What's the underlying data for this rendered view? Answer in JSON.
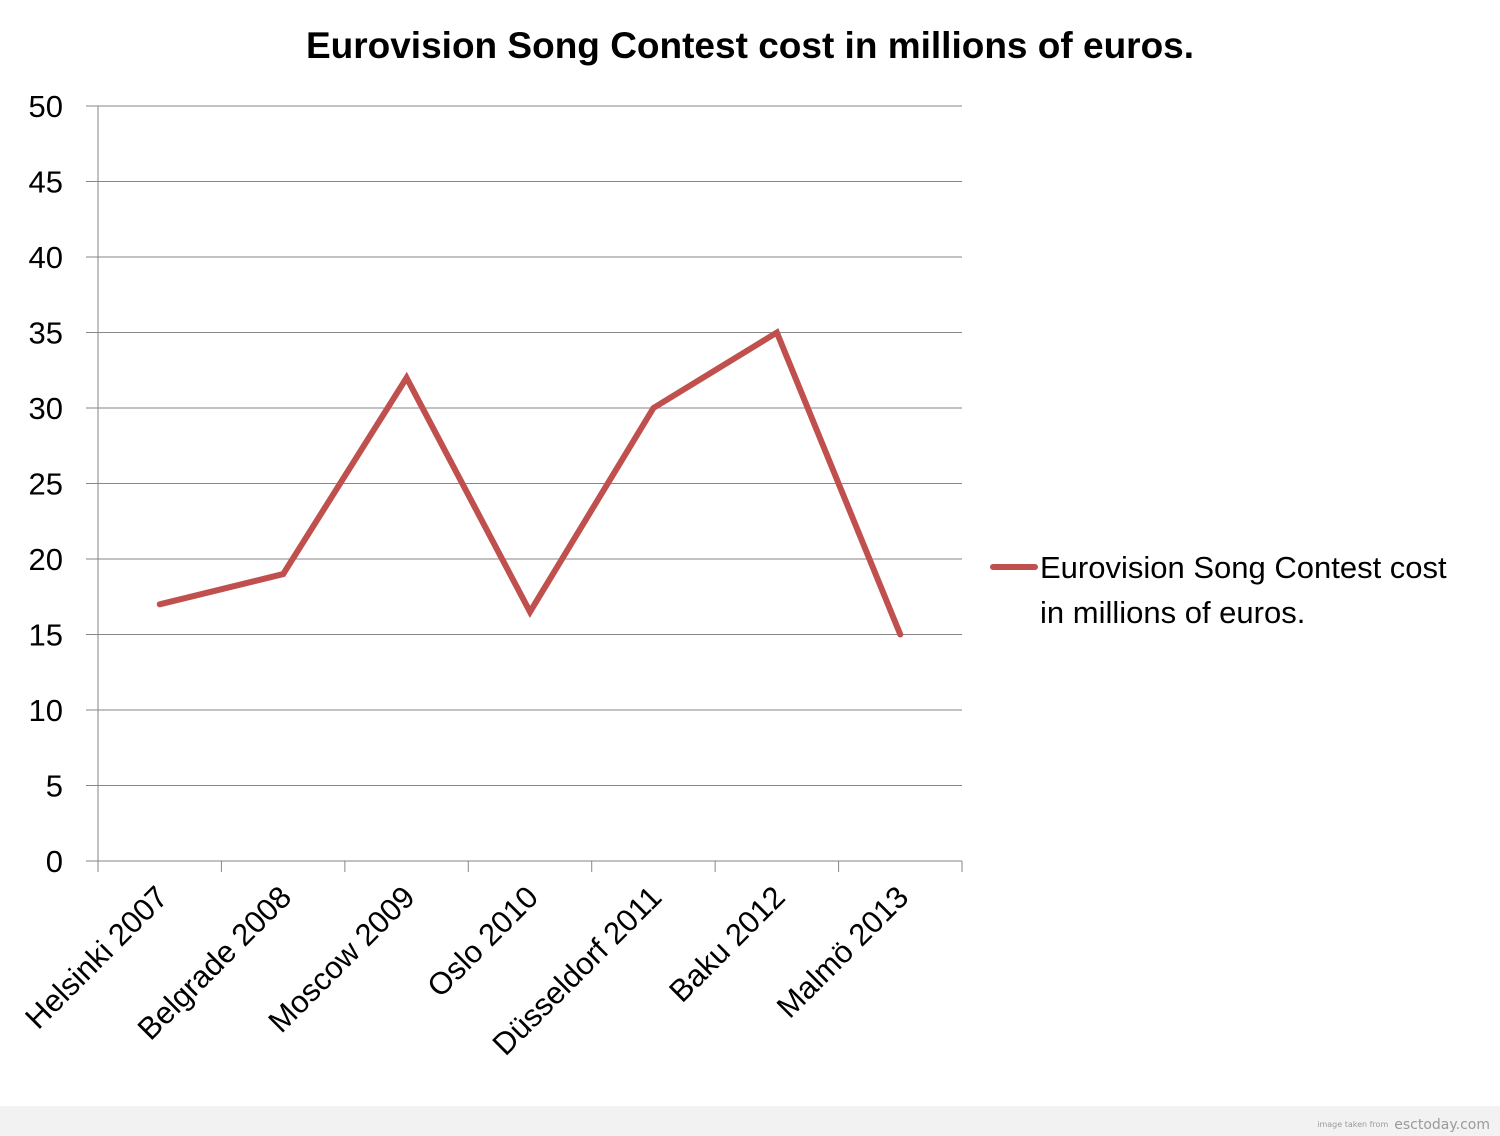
{
  "chart_data": {
    "type": "line",
    "title": "Eurovision Song Contest cost in millions of euros.",
    "xlabel": "",
    "ylabel": "",
    "categories": [
      "Helsinki 2007",
      "Belgrade 2008",
      "Moscow 2009",
      "Oslo 2010",
      "Düsseldorf 2011",
      "Baku 2012",
      "Malmö 2013"
    ],
    "series": [
      {
        "name": "Eurovision Song Contest cost in millions of euros.",
        "values": [
          17,
          19,
          32,
          16.5,
          30,
          35,
          15
        ],
        "color": "#c0504d"
      }
    ],
    "ylim": [
      0,
      50
    ],
    "yticks": [
      "0",
      "5",
      "10",
      "15",
      "20",
      "25",
      "30",
      "35",
      "40",
      "45",
      "50"
    ],
    "grid": true,
    "legend": "right"
  },
  "legend_text_lines": [
    "Eurovision Song Contest cost",
    "in millions of euros."
  ],
  "credit": {
    "prefix": "image taken from",
    "site": "esctoday.com"
  }
}
